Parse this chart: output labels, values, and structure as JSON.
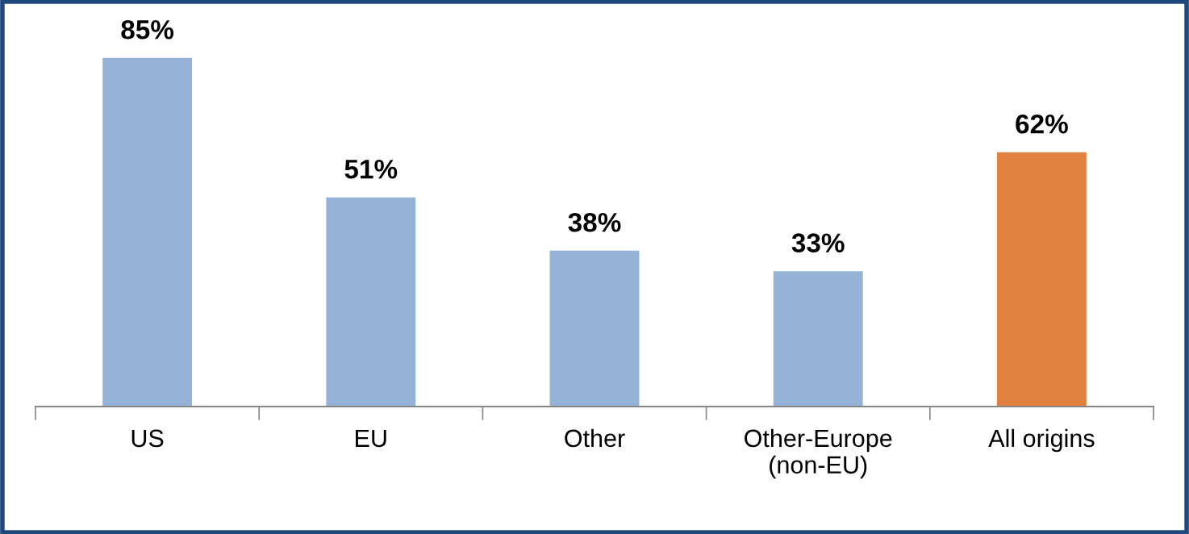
{
  "chart_data": {
    "type": "bar",
    "categories": [
      "US",
      "EU",
      "Other",
      "Other-Europe\n(non-EU)",
      "All origins"
    ],
    "values": [
      85,
      51,
      38,
      33,
      62
    ],
    "colors": [
      "#95b3d7",
      "#95b3d7",
      "#95b3d7",
      "#95b3d7",
      "#e0813f"
    ],
    "value_labels": [
      "85%",
      "51%",
      "38%",
      "33%",
      "62%"
    ],
    "grid": false,
    "legend": false
  }
}
